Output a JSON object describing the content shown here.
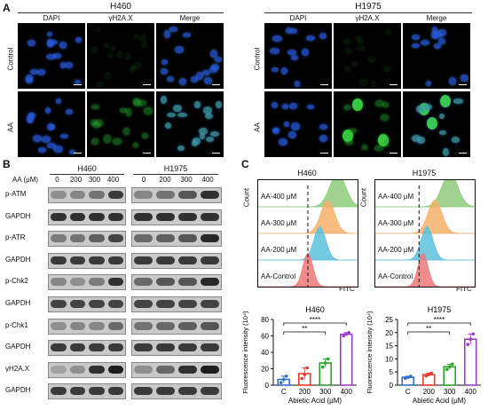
{
  "panel_labels": {
    "a": "A",
    "b": "B",
    "c": "C"
  },
  "panel_a": {
    "groups": [
      {
        "title": "H460",
        "channels": [
          "DAPI",
          "γH2A.X",
          "Merge"
        ]
      },
      {
        "title": "H1975",
        "channels": [
          "DAPI",
          "γH2A.X",
          "Merge"
        ]
      }
    ],
    "row_labels": [
      "Control",
      "AA"
    ]
  },
  "panel_b": {
    "dose_label": "AA (μM)",
    "cell_lines": [
      "H460",
      "H1975"
    ],
    "doses": [
      "0",
      "200",
      "300",
      "400"
    ],
    "rows": [
      "p-ATM",
      "GAPDH",
      "p-ATR",
      "GAPDH",
      "p-Chk2",
      "GAPDH",
      "p-Chk1",
      "GAPDH",
      "γH2A.X",
      "GAPDH"
    ]
  },
  "panel_c": {
    "histograms": [
      {
        "title": "H460",
        "ylabel": "Count",
        "xlabel": "FITC",
        "rows": [
          "AA-400 μM",
          "AA-300 μM",
          "AA-200 μM",
          "AA-Control"
        ]
      },
      {
        "title": "H1975",
        "ylabel": "Count",
        "xlabel": "FITC",
        "rows": [
          "AA-400 μM",
          "AA-300 μM",
          "AA-200 μM",
          "AA-Control"
        ]
      }
    ],
    "hist_colors": [
      "#8fca7d",
      "#f5b06a",
      "#5cc1dc",
      "#ef7878"
    ]
  },
  "chart_data": [
    {
      "type": "bar",
      "title": "H460",
      "categories": [
        "C",
        "200",
        "300",
        "400"
      ],
      "values": [
        7,
        14,
        27,
        62
      ],
      "errors": [
        4,
        7,
        5,
        2
      ],
      "points": [
        [
          3,
          7,
          11
        ],
        [
          8,
          13,
          21
        ],
        [
          22,
          27,
          32
        ],
        [
          60,
          62,
          64
        ]
      ],
      "colors": [
        "#2e6fd0",
        "#e8392d",
        "#2ca02c",
        "#9b3fc2"
      ],
      "ylabel": "Fluorescence intensity (10⁴)",
      "xlabel": "Abietic Acid (μM)",
      "ylim": [
        0,
        80
      ],
      "yticks": [
        0,
        20,
        40,
        60,
        80
      ],
      "significance": [
        {
          "from": 0,
          "to": 2,
          "label": "**"
        },
        {
          "from": 0,
          "to": 3,
          "label": "****"
        }
      ]
    },
    {
      "type": "bar",
      "title": "H1975",
      "categories": [
        "C",
        "200",
        "300",
        "400"
      ],
      "values": [
        3,
        4,
        7,
        17.5
      ],
      "errors": [
        0.4,
        0.6,
        1,
        2
      ],
      "points": [
        [
          2.6,
          3,
          3.4
        ],
        [
          3.5,
          4,
          4.6
        ],
        [
          6,
          7,
          8
        ],
        [
          15.5,
          17.5,
          19.5
        ]
      ],
      "colors": [
        "#2e6fd0",
        "#e8392d",
        "#2ca02c",
        "#9b3fc2"
      ],
      "ylabel": "Fluorescence intensity (10⁴)",
      "xlabel": "Abietic Acid (μM)",
      "ylim": [
        0,
        25
      ],
      "yticks": [
        0,
        5,
        10,
        15,
        20,
        25
      ],
      "significance": [
        {
          "from": 0,
          "to": 2,
          "label": "**"
        },
        {
          "from": 0,
          "to": 3,
          "label": "****"
        }
      ]
    }
  ]
}
